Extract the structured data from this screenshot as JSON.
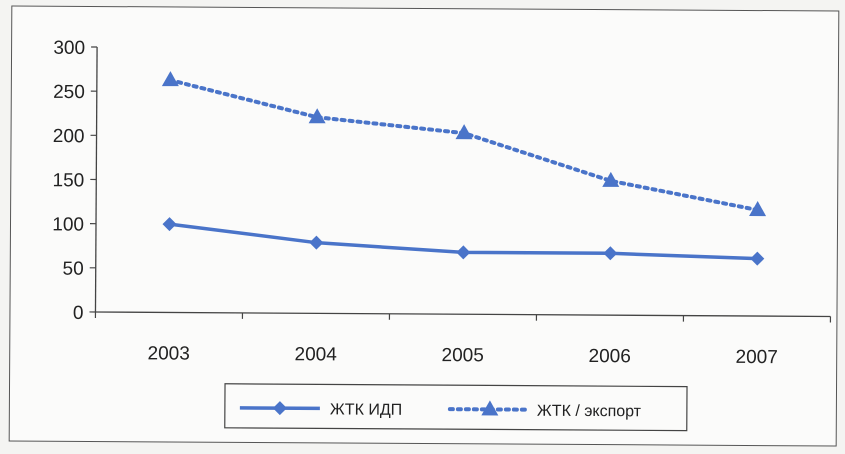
{
  "chart_data": {
    "type": "line",
    "title": "",
    "xlabel": "",
    "ylabel": "",
    "categories": [
      "2003",
      "2004",
      "2005",
      "2006",
      "2007"
    ],
    "ylim": [
      0,
      300
    ],
    "yticks": [
      "0",
      "50",
      "100",
      "150",
      "200",
      "250",
      "300"
    ],
    "grid": false,
    "legend_position": "bottom",
    "series": [
      {
        "name": "ЖТК ИДП",
        "values": [
          100,
          80,
          70,
          70,
          65
        ],
        "marker": "diamond",
        "line_style": "solid",
        "color": "#4a74c9"
      },
      {
        "name": "ЖТК / экспорт",
        "values": [
          263,
          222,
          205,
          152,
          120
        ],
        "marker": "triangle",
        "line_style": "dotted",
        "color": "#4a74c9"
      }
    ]
  }
}
